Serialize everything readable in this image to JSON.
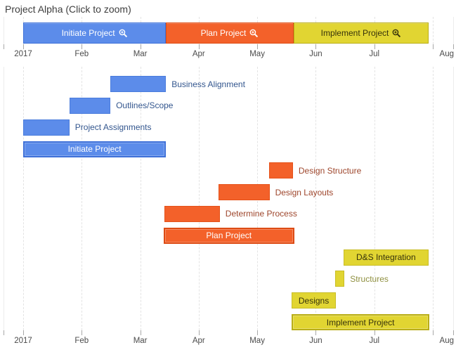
{
  "title": "Project Alpha (Click to zoom)",
  "palette": {
    "blue": {
      "fill": "#5C8CEA",
      "border": "#4A7CDC",
      "summary_border": "#3E70D8",
      "label": "#33568E",
      "inside_label": "#FFFFFF"
    },
    "orange": {
      "fill": "#F3612A",
      "border": "#E5521A",
      "summary_border": "#DD4B14",
      "label": "#9E462C",
      "inside_label": "#FFFFFF"
    },
    "yellow": {
      "fill": "#E1D532",
      "border": "#C8BD25",
      "summary_border": "#B9AE18",
      "label": "#8F9040",
      "inside_label": "#37330B"
    }
  },
  "chart_data": {
    "type": "bar",
    "variant": "gantt",
    "title": "Project Alpha (Click to zoom)",
    "x_axis": {
      "unit": "months from Jan 1 2017 (0 = Jan, 7 = Aug)",
      "tick_labels": [
        "2017",
        "Feb",
        "Mar",
        "Apr",
        "May",
        "Jun",
        "Jul",
        "Aug"
      ],
      "range": [
        0,
        7
      ],
      "grid": "dashed-vertical",
      "shown_top_and_bottom": true
    },
    "overview_tasks": [
      {
        "label": "Initiate Project",
        "icon": "zoom-in-icon",
        "color": "blue",
        "start": 0.0,
        "end": 2.44
      },
      {
        "label": "Plan Project",
        "icon": "zoom-in-icon",
        "color": "orange",
        "start": 2.44,
        "end": 4.62
      },
      {
        "label": "Implement Project",
        "icon": "zoom-in-icon",
        "color": "yellow",
        "start": 4.62,
        "end": 6.93
      }
    ],
    "tasks": [
      {
        "label": "Business Alignment",
        "color": "blue",
        "start": 1.49,
        "end": 2.44,
        "label_position": "right",
        "summary": false
      },
      {
        "label": "Outlines/Scope",
        "color": "blue",
        "start": 0.79,
        "end": 1.49,
        "label_position": "right",
        "summary": false
      },
      {
        "label": "Project Assignments",
        "color": "blue",
        "start": 0.0,
        "end": 0.79,
        "label_position": "right",
        "summary": false
      },
      {
        "label": "Initiate Project",
        "color": "blue",
        "start": 0.0,
        "end": 2.44,
        "label_position": "inside",
        "summary": true
      },
      {
        "label": "Design Structure",
        "color": "orange",
        "start": 4.2,
        "end": 4.61,
        "label_position": "right",
        "summary": false
      },
      {
        "label": "Design Layouts",
        "color": "orange",
        "start": 3.34,
        "end": 4.21,
        "label_position": "right",
        "summary": false
      },
      {
        "label": "Determine Process",
        "color": "orange",
        "start": 2.41,
        "end": 3.36,
        "label_position": "right",
        "summary": false
      },
      {
        "label": "Plan Project",
        "color": "orange",
        "start": 2.4,
        "end": 4.63,
        "label_position": "inside",
        "summary": true
      },
      {
        "label": "D&S Integration",
        "color": "yellow",
        "start": 5.47,
        "end": 6.93,
        "label_position": "inside",
        "summary": false
      },
      {
        "label": "Structures",
        "color": "yellow",
        "start": 5.33,
        "end": 5.49,
        "label_position": "right",
        "summary": false
      },
      {
        "label": "Designs",
        "color": "yellow",
        "start": 4.59,
        "end": 5.34,
        "label_position": "inside",
        "summary": false
      },
      {
        "label": "Implement Project",
        "color": "yellow",
        "start": 4.59,
        "end": 6.94,
        "label_position": "inside",
        "summary": true
      }
    ]
  }
}
